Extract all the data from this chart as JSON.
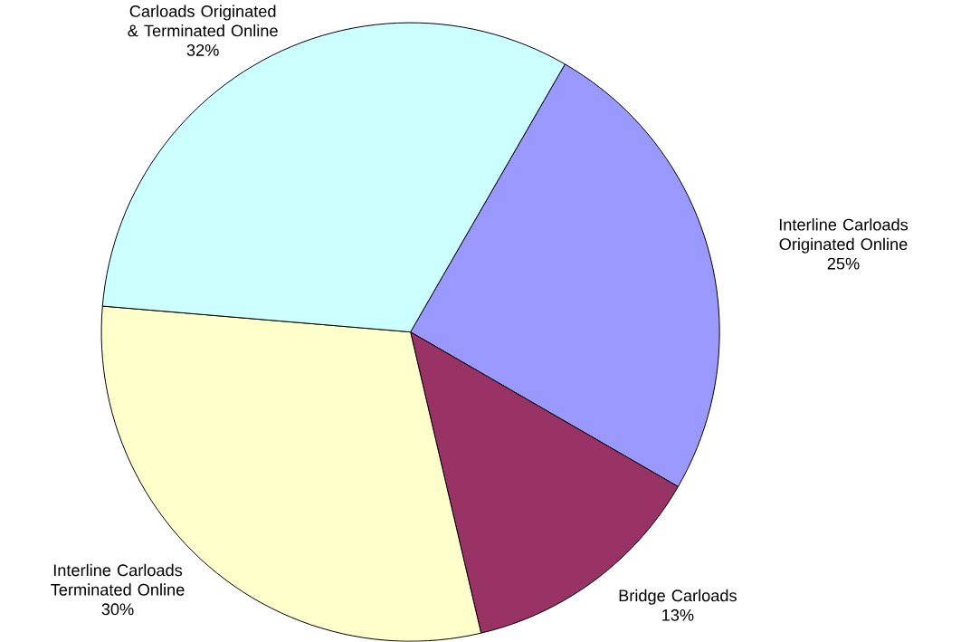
{
  "chart_data": {
    "type": "pie",
    "categories": [
      "Interline Carloads Originated Online",
      "Bridge Carloads",
      "Interline Carloads Terminated Online",
      "Carloads Originated & Terminated Online"
    ],
    "values": [
      25,
      13,
      30,
      32
    ],
    "value_labels": [
      "25%",
      "13%",
      "30%",
      "32%"
    ],
    "colors": [
      "#9999ff",
      "#993366",
      "#ffffcc",
      "#ccffff"
    ]
  }
}
